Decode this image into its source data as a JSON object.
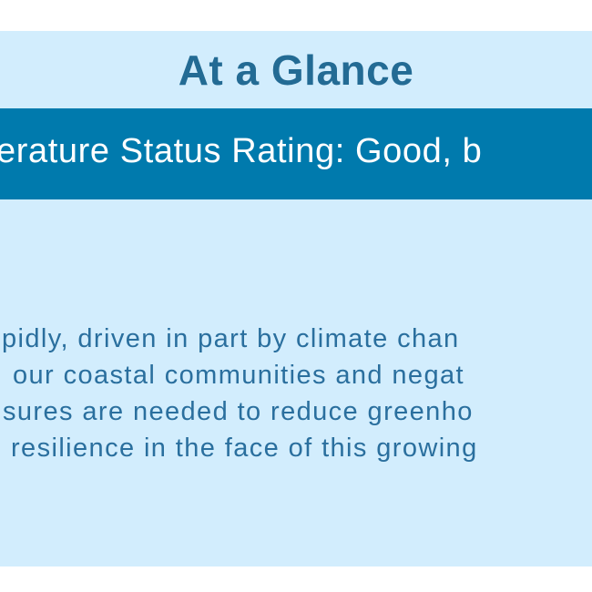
{
  "header": {
    "title": "At a Glance"
  },
  "banner": {
    "text": "erature Status Rating: Good, b"
  },
  "body": {
    "lines": [
      "pidly, driven in part by climate chan",
      "our coastal communities and negat",
      "sures are needed to reduce greenho",
      "resilience in the face of this growing"
    ]
  },
  "colors": {
    "panel_background": "#d2edfd",
    "title": "#236b94",
    "banner_background": "#007aad",
    "body_text": "#2a6f9e"
  }
}
